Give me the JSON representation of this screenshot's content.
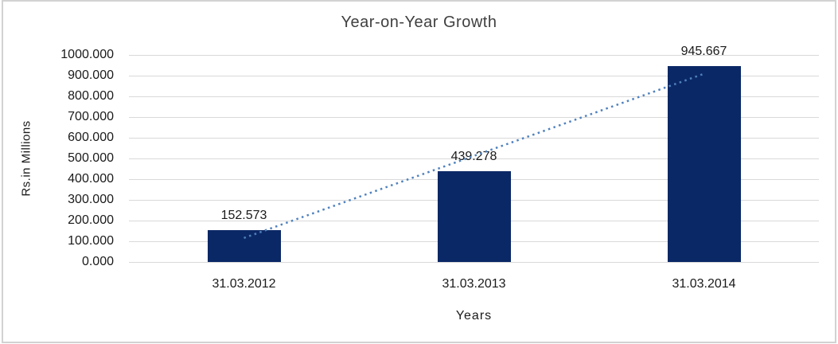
{
  "window": {
    "background": "#ffffff",
    "frame_border_color": "#d2d2d2"
  },
  "chart_data": {
    "type": "bar",
    "title": "Year-on-Year Growth",
    "xlabel": "Years",
    "ylabel": "Rs.in Millions",
    "categories": [
      "31.03.2012",
      "31.03.2013",
      "31.03.2014"
    ],
    "values": [
      152.573,
      439.278,
      945.667
    ],
    "data_labels": [
      "152.573",
      "439.278",
      "945.667"
    ],
    "ylim": [
      0,
      1000
    ],
    "ytick_step": 100,
    "ytick_labels": [
      "0.000",
      "100.000",
      "200.000",
      "300.000",
      "400.000",
      "500.000",
      "600.000",
      "700.000",
      "800.000",
      "900.000",
      "1000.000"
    ],
    "grid": true,
    "legend": "none",
    "bar_color": "#0b2866",
    "grid_color": "#d9d9d9",
    "text_color": "#1a1a1a",
    "title_color": "#404040",
    "trendline": {
      "type": "linear",
      "style": "dotted",
      "color": "#4f81bd",
      "start_value": 116,
      "end_value": 909
    }
  }
}
